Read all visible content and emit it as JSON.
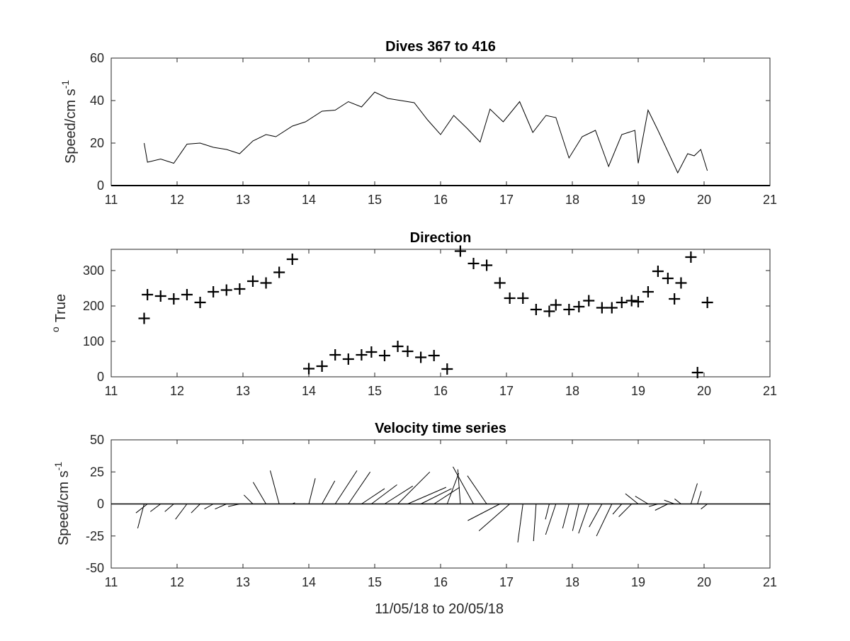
{
  "figure": {
    "xlabel": "11/05/18 to 20/05/18"
  },
  "chart_data": [
    {
      "type": "line",
      "title": "Dives 367 to 416",
      "ylabel": "Speed/cm s",
      "ylabel_superscript": "-1",
      "xlim": [
        11,
        21
      ],
      "ylim": [
        0,
        60
      ],
      "xticks": [
        11,
        12,
        13,
        14,
        15,
        16,
        17,
        18,
        19,
        20,
        21
      ],
      "yticks": [
        0,
        20,
        40,
        60
      ],
      "series": [
        {
          "x": [
            11.5,
            11.55,
            11.75,
            11.95,
            12.15,
            12.35,
            12.55,
            12.75,
            12.95,
            13.15,
            13.35,
            13.5,
            13.75,
            13.95,
            14.2,
            14.4,
            14.6,
            14.8,
            15.0,
            15.2,
            15.4,
            15.6,
            15.8,
            16.0,
            16.2,
            16.4,
            16.6,
            16.75,
            16.95,
            17.2,
            17.4,
            17.6,
            17.75,
            17.95,
            18.15,
            18.35,
            18.55,
            18.75,
            18.95,
            19.0,
            19.15,
            19.3,
            19.45,
            19.6,
            19.75,
            19.85,
            19.95,
            20.05
          ],
          "y": [
            20,
            11,
            12.5,
            10.5,
            19.5,
            20,
            18,
            17,
            15,
            21,
            24,
            23,
            28,
            30,
            35,
            35.5,
            39.5,
            37,
            44,
            41,
            40,
            39,
            31,
            24,
            33,
            27,
            20.5,
            36,
            30,
            39.5,
            25,
            33,
            32,
            13,
            23,
            26,
            9,
            24,
            26,
            10.5,
            35.5,
            26,
            16,
            6,
            15,
            14,
            17,
            7
          ]
        }
      ]
    },
    {
      "type": "scatter",
      "title": "Direction",
      "ylabel": "True",
      "ylabel_prefix": "o",
      "marker": "+",
      "xlim": [
        11,
        21
      ],
      "ylim": [
        0,
        360
      ],
      "xticks": [
        11,
        12,
        13,
        14,
        15,
        16,
        17,
        18,
        19,
        20,
        21
      ],
      "yticks": [
        0,
        100,
        200,
        300
      ],
      "series": [
        {
          "x": [
            11.5,
            11.55,
            11.75,
            11.95,
            12.15,
            12.35,
            12.55,
            12.75,
            12.95,
            13.15,
            13.35,
            13.55,
            13.75,
            14.0,
            14.2,
            14.4,
            14.6,
            14.8,
            14.95,
            15.15,
            15.35,
            15.5,
            15.7,
            15.9,
            16.1,
            16.3,
            16.5,
            16.7,
            16.9,
            17.05,
            17.25,
            17.45,
            17.65,
            17.75,
            17.95,
            18.1,
            18.25,
            18.45,
            18.6,
            18.75,
            18.9,
            19.0,
            19.15,
            19.3,
            19.45,
            19.55,
            19.65,
            19.8,
            19.9,
            20.05
          ],
          "y": [
            165,
            232,
            228,
            220,
            232,
            210,
            240,
            245,
            248,
            270,
            265,
            295,
            332,
            23,
            30,
            62,
            50,
            62,
            70,
            60,
            86,
            72,
            55,
            60,
            22,
            355,
            320,
            315,
            265,
            222,
            222,
            190,
            185,
            203,
            190,
            198,
            215,
            195,
            195,
            210,
            215,
            212,
            240,
            298,
            278,
            220,
            265,
            338,
            12,
            210
          ]
        }
      ]
    },
    {
      "type": "feather",
      "title": "Velocity time series",
      "ylabel": "Speed/cm s",
      "ylabel_superscript": "-1",
      "xlim": [
        11,
        21
      ],
      "ylim": [
        -50,
        50
      ],
      "xticks": [
        11,
        12,
        13,
        14,
        15,
        16,
        17,
        18,
        19,
        20,
        21
      ],
      "yticks": [
        -50,
        -25,
        0,
        25,
        50
      ],
      "baseline": 0,
      "vectors": [
        {
          "x": 11.5,
          "u": -5,
          "v": -19
        },
        {
          "x": 11.55,
          "u": -9,
          "v": -7
        },
        {
          "x": 11.75,
          "u": -8,
          "v": -6
        },
        {
          "x": 11.95,
          "u": -7,
          "v": -6
        },
        {
          "x": 12.15,
          "u": -9,
          "v": -12
        },
        {
          "x": 12.35,
          "u": -7,
          "v": -7
        },
        {
          "x": 12.55,
          "u": -7,
          "v": -4
        },
        {
          "x": 12.75,
          "u": -9,
          "v": -4
        },
        {
          "x": 12.95,
          "u": -9,
          "v": -2
        },
        {
          "x": 13.15,
          "u": -7,
          "v": 7
        },
        {
          "x": 13.35,
          "u": -10,
          "v": 17
        },
        {
          "x": 13.55,
          "u": -7,
          "v": 26
        },
        {
          "x": 13.75,
          "u": 2,
          "v": 1
        },
        {
          "x": 14.0,
          "u": 5,
          "v": 20
        },
        {
          "x": 14.2,
          "u": 10,
          "v": 18
        },
        {
          "x": 14.4,
          "u": 17,
          "v": 26
        },
        {
          "x": 14.6,
          "u": 17,
          "v": 25
        },
        {
          "x": 14.8,
          "u": 18,
          "v": 12
        },
        {
          "x": 14.95,
          "u": 20,
          "v": 15
        },
        {
          "x": 15.15,
          "u": 22,
          "v": 14
        },
        {
          "x": 15.35,
          "u": 25,
          "v": 25
        },
        {
          "x": 15.5,
          "u": 30,
          "v": 13
        },
        {
          "x": 15.7,
          "u": 24,
          "v": 12
        },
        {
          "x": 15.9,
          "u": 20,
          "v": 13
        },
        {
          "x": 16.1,
          "u": 9,
          "v": 24
        },
        {
          "x": 16.3,
          "u": -2,
          "v": 27
        },
        {
          "x": 16.5,
          "u": -16,
          "v": 29
        },
        {
          "x": 16.7,
          "u": -15,
          "v": 22
        },
        {
          "x": 16.9,
          "u": -25,
          "v": -13
        },
        {
          "x": 17.05,
          "u": -24,
          "v": -21
        },
        {
          "x": 17.25,
          "u": -4,
          "v": -30
        },
        {
          "x": 17.45,
          "u": -2,
          "v": -29
        },
        {
          "x": 17.65,
          "u": -3,
          "v": -12
        },
        {
          "x": 17.75,
          "u": -8,
          "v": -24
        },
        {
          "x": 17.95,
          "u": -5,
          "v": -19
        },
        {
          "x": 18.1,
          "u": -5,
          "v": -21
        },
        {
          "x": 18.25,
          "u": -8,
          "v": -23
        },
        {
          "x": 18.45,
          "u": -10,
          "v": -18
        },
        {
          "x": 18.6,
          "u": -12,
          "v": -25
        },
        {
          "x": 18.75,
          "u": -7,
          "v": -8
        },
        {
          "x": 18.9,
          "u": -10,
          "v": -10
        },
        {
          "x": 19.0,
          "u": -10,
          "v": 8
        },
        {
          "x": 19.15,
          "u": -10,
          "v": 6
        },
        {
          "x": 19.3,
          "u": -7,
          "v": -2
        },
        {
          "x": 19.45,
          "u": -10,
          "v": -5
        },
        {
          "x": 19.55,
          "u": -8,
          "v": 3
        },
        {
          "x": 19.65,
          "u": -5,
          "v": 4
        },
        {
          "x": 19.8,
          "u": 5,
          "v": 16
        },
        {
          "x": 19.9,
          "u": 3,
          "v": 10
        },
        {
          "x": 20.05,
          "u": -5,
          "v": -4
        }
      ]
    }
  ]
}
